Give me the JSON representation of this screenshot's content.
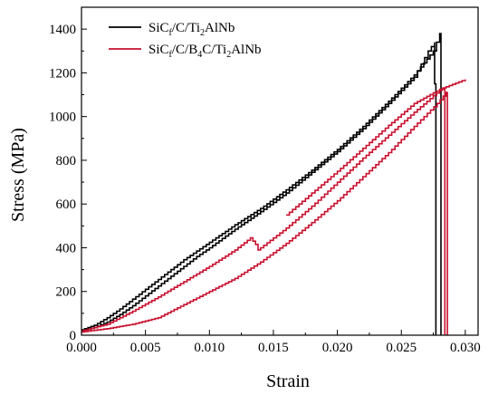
{
  "chart_data": {
    "type": "line",
    "xlabel": "Strain",
    "ylabel": "Stress (MPa)",
    "xlim": [
      0.0,
      0.031
    ],
    "ylim": [
      0,
      1500
    ],
    "x_ticks": [
      0.0,
      0.005,
      0.01,
      0.015,
      0.02,
      0.025,
      0.03
    ],
    "x_tick_labels": [
      "0.000",
      "0.005",
      "0.010",
      "0.015",
      "0.020",
      "0.025",
      "0.030"
    ],
    "y_ticks": [
      0,
      200,
      400,
      600,
      800,
      1000,
      1200,
      1400
    ],
    "y_tick_labels": [
      "0",
      "200",
      "400",
      "600",
      "800",
      "1000",
      "1200",
      "1400"
    ],
    "grid": false,
    "legend_position": "top-left",
    "series": [
      {
        "name": "SiCf/C/Ti2AlNb",
        "legend": [
          {
            "t": "SiC",
            "sub": false
          },
          {
            "t": "f",
            "sub": true
          },
          {
            "t": "/C/Ti",
            "sub": false
          },
          {
            "t": "2",
            "sub": true
          },
          {
            "t": "AlNb",
            "sub": false
          }
        ],
        "color": "#000000",
        "step": true,
        "curves": [
          {
            "x": [
              0.0,
              0.001,
              0.002,
              0.003,
              0.004,
              0.005,
              0.006,
              0.007,
              0.008,
              0.009,
              0.01,
              0.012,
              0.014,
              0.016,
              0.018,
              0.02,
              0.022,
              0.024,
              0.026,
              0.0271,
              0.0276,
              0.0276,
              0.0277,
              0.0277
            ],
            "y": [
              20,
              35,
              60,
              95,
              135,
              180,
              225,
              270,
              315,
              360,
              400,
              485,
              565,
              650,
              745,
              840,
              945,
              1060,
              1180,
              1300,
              1340,
              1150,
              1100,
              0
            ]
          },
          {
            "x": [
              0.0,
              0.001,
              0.002,
              0.003,
              0.004,
              0.005,
              0.006,
              0.007,
              0.008,
              0.009,
              0.01,
              0.012,
              0.014,
              0.016,
              0.018,
              0.02,
              0.022,
              0.024,
              0.026,
              0.0275,
              0.028,
              0.0281,
              0.0281
            ],
            "y": [
              25,
              45,
              80,
              120,
              165,
              210,
              255,
              300,
              345,
              385,
              425,
              505,
              580,
              665,
              755,
              850,
              955,
              1070,
              1190,
              1300,
              1380,
              1380,
              0
            ]
          }
        ]
      },
      {
        "name": "SiCf/C/B4C/Ti2AlNb",
        "legend": [
          {
            "t": "SiC",
            "sub": false
          },
          {
            "t": "f",
            "sub": true
          },
          {
            "t": "/C/B",
            "sub": false
          },
          {
            "t": "4",
            "sub": true
          },
          {
            "t": "C/Ti",
            "sub": false
          },
          {
            "t": "2",
            "sub": true
          },
          {
            "t": "AlNb",
            "sub": false
          }
        ],
        "color": "#c8102e",
        "step": true,
        "curves": [
          {
            "x": [
              0.0,
              0.002,
              0.004,
              0.006,
              0.008,
              0.01,
              0.012,
              0.0132,
              0.0136,
              0.0138,
              0.014,
              0.016,
              0.018,
              0.02,
              0.022,
              0.024,
              0.026,
              0.027,
              0.028,
              0.0284,
              0.0284
            ],
            "y": [
              20,
              50,
              110,
              175,
              245,
              315,
              390,
              445,
              415,
              390,
              400,
              490,
              590,
              700,
              810,
              915,
              1020,
              1070,
              1120,
              1130,
              0
            ]
          },
          {
            "x": [
              0.0,
              0.002,
              0.004,
              0.006,
              0.008,
              0.01,
              0.012,
              0.014,
              0.016,
              0.018,
              0.02,
              0.022,
              0.024,
              0.026,
              0.0278,
              0.0285,
              0.0286,
              0.0286
            ],
            "y": [
              15,
              30,
              50,
              80,
              140,
              200,
              260,
              335,
              420,
              515,
              615,
              725,
              835,
              955,
              1060,
              1110,
              1110,
              0
            ]
          },
          {
            "x": [
              0.016,
              0.018,
              0.02,
              0.022,
              0.024,
              0.026,
              0.028,
              0.03
            ],
            "y": [
              550,
              650,
              750,
              855,
              960,
              1060,
              1125,
              1170
            ]
          }
        ]
      }
    ]
  }
}
